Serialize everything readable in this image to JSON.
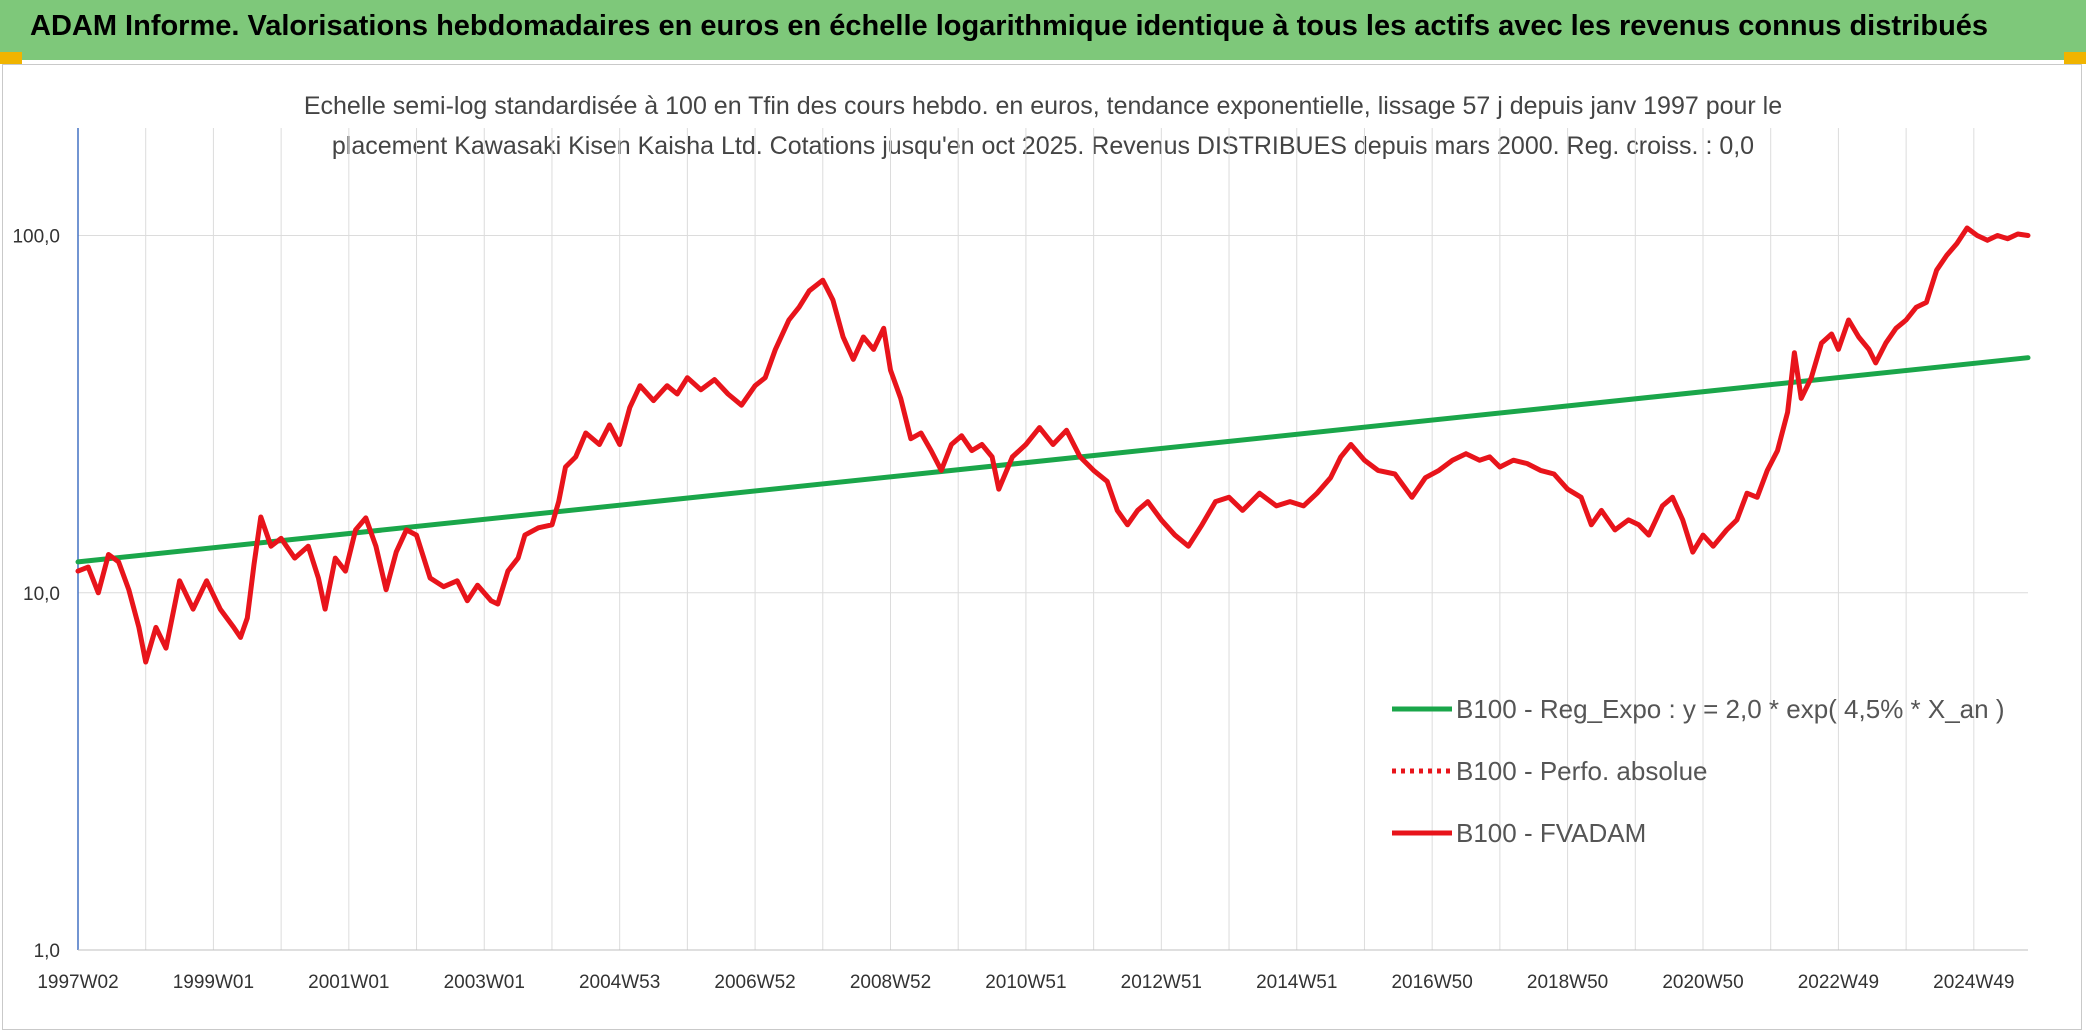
{
  "header": {
    "title": "ADAM Informe. Valorisations hebdomadaires en euros en échelle logarithmique identique à tous les actifs avec les revenus connus distribués"
  },
  "chart_data": {
    "type": "line",
    "subtitle_line1": "Echelle semi-log standardisée à 100 en Tfin des cours hebdo. en euros, tendance exponentielle, lissage 57 j depuis janv 1997 pour le",
    "subtitle_line2": "placement Kawasaki Kisen Kaisha Ltd. Cotations jusqu'en oct 2025. Revenus DISTRIBUES depuis mars 2000. Reg. croiss. : 0,0",
    "y_scale": "log",
    "ylim": [
      1,
      200
    ],
    "y_ticks": [
      {
        "value": 1,
        "label": "1,0"
      },
      {
        "value": 10,
        "label": "10,0"
      },
      {
        "value": 100,
        "label": "100,0"
      }
    ],
    "x_range": [
      1997.0,
      2025.8
    ],
    "x_ticks": [
      {
        "year": 1997.0,
        "label": "1997W02"
      },
      {
        "year": 1999.0,
        "label": "1999W01"
      },
      {
        "year": 2001.0,
        "label": "2001W01"
      },
      {
        "year": 2003.0,
        "label": "2003W01"
      },
      {
        "year": 2005.0,
        "label": "2004W53"
      },
      {
        "year": 2007.0,
        "label": "2006W52"
      },
      {
        "year": 2009.0,
        "label": "2008W52"
      },
      {
        "year": 2011.0,
        "label": "2010W51"
      },
      {
        "year": 2013.0,
        "label": "2012W51"
      },
      {
        "year": 2015.0,
        "label": "2014W51"
      },
      {
        "year": 2017.0,
        "label": "2016W50"
      },
      {
        "year": 2019.0,
        "label": "2018W50"
      },
      {
        "year": 2021.0,
        "label": "2020W50"
      },
      {
        "year": 2023.0,
        "label": "2022W49"
      },
      {
        "year": 2025.0,
        "label": "2024W49"
      }
    ],
    "grid": true,
    "legend_position": "bottom-right",
    "series": [
      {
        "name": "B100 - Reg_Expo : y = 2,0 * exp( 4,5% *  X_an )",
        "color": "#1aa64a",
        "style": "solid",
        "points": [
          [
            1997.0,
            12.2
          ],
          [
            2025.8,
            45.5
          ]
        ]
      },
      {
        "name": "B100 - Perfo. absolue",
        "color": "#e8141b",
        "style": "dotted",
        "points": []
      },
      {
        "name": "B100 - FVADAM",
        "color": "#e8141b",
        "style": "solid",
        "points": [
          [
            1997.0,
            11.5
          ],
          [
            1997.15,
            11.8
          ],
          [
            1997.3,
            10.0
          ],
          [
            1997.45,
            12.8
          ],
          [
            1997.6,
            12.2
          ],
          [
            1997.75,
            10.2
          ],
          [
            1997.9,
            8.0
          ],
          [
            1998.0,
            6.4
          ],
          [
            1998.15,
            8.0
          ],
          [
            1998.3,
            7.0
          ],
          [
            1998.5,
            10.8
          ],
          [
            1998.7,
            9.0
          ],
          [
            1998.9,
            10.8
          ],
          [
            1999.1,
            9.0
          ],
          [
            1999.3,
            8.0
          ],
          [
            1999.4,
            7.5
          ],
          [
            1999.5,
            8.5
          ],
          [
            1999.6,
            12.0
          ],
          [
            1999.7,
            16.3
          ],
          [
            1999.85,
            13.5
          ],
          [
            2000.0,
            14.2
          ],
          [
            2000.2,
            12.5
          ],
          [
            2000.4,
            13.5
          ],
          [
            2000.55,
            11.0
          ],
          [
            2000.65,
            9.0
          ],
          [
            2000.8,
            12.5
          ],
          [
            2000.95,
            11.5
          ],
          [
            2001.1,
            15.0
          ],
          [
            2001.25,
            16.2
          ],
          [
            2001.4,
            13.5
          ],
          [
            2001.55,
            10.2
          ],
          [
            2001.7,
            13.0
          ],
          [
            2001.85,
            15.0
          ],
          [
            2002.0,
            14.5
          ],
          [
            2002.2,
            11.0
          ],
          [
            2002.4,
            10.4
          ],
          [
            2002.6,
            10.8
          ],
          [
            2002.75,
            9.5
          ],
          [
            2002.9,
            10.5
          ],
          [
            2003.1,
            9.5
          ],
          [
            2003.2,
            9.3
          ],
          [
            2003.35,
            11.5
          ],
          [
            2003.5,
            12.5
          ],
          [
            2003.6,
            14.5
          ],
          [
            2003.8,
            15.2
          ],
          [
            2004.0,
            15.5
          ],
          [
            2004.1,
            18.0
          ],
          [
            2004.2,
            22.5
          ],
          [
            2004.35,
            24.0
          ],
          [
            2004.5,
            28.0
          ],
          [
            2004.7,
            26.0
          ],
          [
            2004.85,
            29.5
          ],
          [
            2005.0,
            26.0
          ],
          [
            2005.15,
            33.0
          ],
          [
            2005.3,
            38.0
          ],
          [
            2005.5,
            34.5
          ],
          [
            2005.7,
            38.0
          ],
          [
            2005.85,
            36.0
          ],
          [
            2006.0,
            40.0
          ],
          [
            2006.2,
            37.0
          ],
          [
            2006.4,
            39.5
          ],
          [
            2006.6,
            36.0
          ],
          [
            2006.8,
            33.5
          ],
          [
            2007.0,
            38.0
          ],
          [
            2007.15,
            40.0
          ],
          [
            2007.3,
            48.0
          ],
          [
            2007.5,
            58.0
          ],
          [
            2007.65,
            63.0
          ],
          [
            2007.8,
            70.0
          ],
          [
            2008.0,
            75.0
          ],
          [
            2008.15,
            66.0
          ],
          [
            2008.3,
            52.0
          ],
          [
            2008.45,
            45.0
          ],
          [
            2008.6,
            52.0
          ],
          [
            2008.75,
            48.0
          ],
          [
            2008.9,
            55.0
          ],
          [
            2009.0,
            42.0
          ],
          [
            2009.15,
            35.0
          ],
          [
            2009.3,
            27.0
          ],
          [
            2009.45,
            28.0
          ],
          [
            2009.6,
            25.0
          ],
          [
            2009.75,
            22.0
          ],
          [
            2009.9,
            26.0
          ],
          [
            2010.05,
            27.5
          ],
          [
            2010.2,
            25.0
          ],
          [
            2010.35,
            26.0
          ],
          [
            2010.5,
            24.0
          ],
          [
            2010.6,
            19.5
          ],
          [
            2010.8,
            24.0
          ],
          [
            2011.0,
            26.0
          ],
          [
            2011.2,
            29.0
          ],
          [
            2011.4,
            26.0
          ],
          [
            2011.6,
            28.5
          ],
          [
            2011.8,
            24.0
          ],
          [
            2012.0,
            22.0
          ],
          [
            2012.2,
            20.5
          ],
          [
            2012.35,
            17.0
          ],
          [
            2012.5,
            15.5
          ],
          [
            2012.65,
            17.0
          ],
          [
            2012.8,
            18.0
          ],
          [
            2013.0,
            16.0
          ],
          [
            2013.2,
            14.5
          ],
          [
            2013.4,
            13.5
          ],
          [
            2013.6,
            15.5
          ],
          [
            2013.8,
            18.0
          ],
          [
            2014.0,
            18.5
          ],
          [
            2014.2,
            17.0
          ],
          [
            2014.45,
            19.0
          ],
          [
            2014.7,
            17.5
          ],
          [
            2014.9,
            18.0
          ],
          [
            2015.1,
            17.5
          ],
          [
            2015.3,
            19.0
          ],
          [
            2015.5,
            21.0
          ],
          [
            2015.65,
            24.0
          ],
          [
            2015.8,
            26.0
          ],
          [
            2016.0,
            23.5
          ],
          [
            2016.2,
            22.0
          ],
          [
            2016.45,
            21.5
          ],
          [
            2016.7,
            18.5
          ],
          [
            2016.9,
            21.0
          ],
          [
            2017.1,
            22.0
          ],
          [
            2017.3,
            23.5
          ],
          [
            2017.5,
            24.5
          ],
          [
            2017.7,
            23.5
          ],
          [
            2017.85,
            24.0
          ],
          [
            2018.0,
            22.5
          ],
          [
            2018.2,
            23.5
          ],
          [
            2018.4,
            23.0
          ],
          [
            2018.6,
            22.0
          ],
          [
            2018.8,
            21.5
          ],
          [
            2019.0,
            19.5
          ],
          [
            2019.2,
            18.5
          ],
          [
            2019.35,
            15.5
          ],
          [
            2019.5,
            17.0
          ],
          [
            2019.7,
            15.0
          ],
          [
            2019.9,
            16.0
          ],
          [
            2020.05,
            15.5
          ],
          [
            2020.2,
            14.5
          ],
          [
            2020.4,
            17.5
          ],
          [
            2020.55,
            18.5
          ],
          [
            2020.7,
            16.0
          ],
          [
            2020.85,
            13.0
          ],
          [
            2021.0,
            14.5
          ],
          [
            2021.15,
            13.5
          ],
          [
            2021.35,
            15.0
          ],
          [
            2021.5,
            16.0
          ],
          [
            2021.65,
            19.0
          ],
          [
            2021.8,
            18.5
          ],
          [
            2021.95,
            22.0
          ],
          [
            2022.1,
            25.0
          ],
          [
            2022.25,
            32.0
          ],
          [
            2022.35,
            47.0
          ],
          [
            2022.45,
            35.0
          ],
          [
            2022.6,
            40.0
          ],
          [
            2022.75,
            50.0
          ],
          [
            2022.9,
            53.0
          ],
          [
            2023.0,
            48.0
          ],
          [
            2023.15,
            58.0
          ],
          [
            2023.3,
            52.0
          ],
          [
            2023.45,
            48.0
          ],
          [
            2023.55,
            44.0
          ],
          [
            2023.7,
            50.0
          ],
          [
            2023.85,
            55.0
          ],
          [
            2024.0,
            58.0
          ],
          [
            2024.15,
            63.0
          ],
          [
            2024.3,
            65.0
          ],
          [
            2024.45,
            80.0
          ],
          [
            2024.6,
            88.0
          ],
          [
            2024.75,
            95.0
          ],
          [
            2024.9,
            105.0
          ],
          [
            2025.05,
            100.0
          ],
          [
            2025.2,
            97.0
          ],
          [
            2025.35,
            100.0
          ],
          [
            2025.5,
            98.0
          ],
          [
            2025.65,
            101.0
          ],
          [
            2025.8,
            100.0
          ]
        ]
      }
    ]
  }
}
